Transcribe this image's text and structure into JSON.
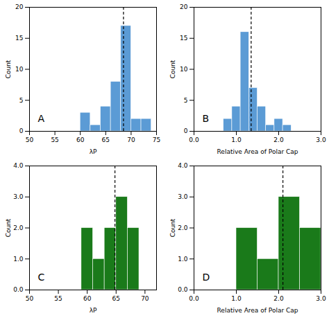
{
  "chart_data": [
    {
      "type": "histogram",
      "bins": [
        50,
        55,
        60,
        62,
        64,
        66,
        68,
        70,
        72,
        74
      ],
      "values": [
        0,
        0,
        3,
        1,
        4,
        8,
        17,
        2,
        2
      ],
      "vline": 68.5,
      "xlim": [
        50,
        75
      ],
      "ylim": [
        0,
        20
      ],
      "xticks": [
        50,
        55,
        60,
        65,
        70,
        75
      ],
      "yticks": [
        0,
        5,
        10,
        15,
        20
      ],
      "xlabel": "λP",
      "ylabel": "Count",
      "annotation": "A",
      "color": "#5b9bd5"
    },
    {
      "type": "histogram",
      "bins": [
        0.7,
        0.9,
        1.1,
        1.3,
        1.5,
        1.7,
        1.9,
        2.1,
        2.3,
        2.5,
        2.7
      ],
      "values": [
        2,
        4,
        16,
        7,
        4,
        1,
        2,
        1,
        0,
        0
      ],
      "vline": 1.35,
      "xlim": [
        0,
        3
      ],
      "ylim": [
        0,
        20
      ],
      "xticks": [
        0,
        1,
        2,
        3
      ],
      "yticks": [
        0,
        5,
        10,
        15,
        20
      ],
      "xlabel": "Relative Area of Polar Cap",
      "ylabel": "Count",
      "annotation": "B",
      "color": "#5b9bd5"
    },
    {
      "type": "histogram",
      "bins": [
        59,
        61,
        63,
        65,
        67,
        69
      ],
      "values": [
        2,
        1,
        2,
        3,
        2
      ],
      "vline": 64.8,
      "xlim": [
        50,
        72
      ],
      "ylim": [
        0,
        4
      ],
      "xticks": [
        50,
        55,
        60,
        65,
        70
      ],
      "yticks": [
        0,
        1,
        2,
        3,
        4
      ],
      "xlabel": "λP",
      "ylabel": "Count",
      "annotation": "C",
      "color": "#1a7a1a"
    },
    {
      "type": "histogram",
      "bins": [
        1.0,
        1.5,
        2.0,
        2.5,
        3.0
      ],
      "values": [
        2,
        1,
        3,
        2
      ],
      "vline": 2.1,
      "xlim": [
        0,
        3
      ],
      "ylim": [
        0,
        4
      ],
      "xticks": [
        0,
        1,
        2,
        3
      ],
      "yticks": [
        0,
        1,
        2,
        3,
        4
      ],
      "xlabel": "Relative Area of Polar Cap",
      "ylabel": "Count",
      "annotation": "D",
      "color": "#1a7a1a"
    }
  ]
}
